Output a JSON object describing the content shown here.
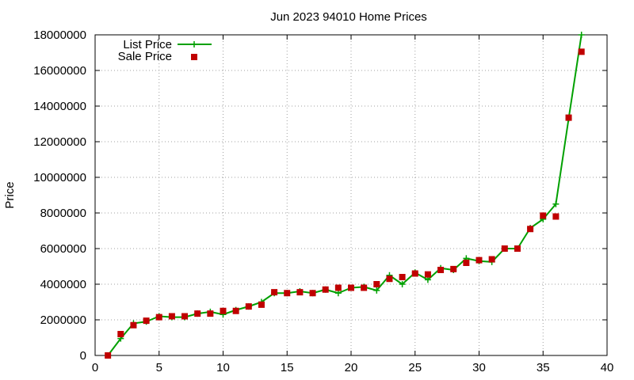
{
  "chart_data": {
    "type": "line",
    "title": "Jun 2023 94010 Home Prices",
    "xlabel": "",
    "ylabel": "Price",
    "xlim": [
      0,
      40
    ],
    "ylim": [
      0,
      18000000
    ],
    "x_ticks": [
      0,
      5,
      10,
      15,
      20,
      25,
      30,
      35,
      40
    ],
    "y_ticks": [
      0,
      2000000,
      4000000,
      6000000,
      8000000,
      10000000,
      12000000,
      14000000,
      16000000,
      18000000
    ],
    "grid": true,
    "legend_position": "top-left",
    "series": [
      {
        "name": "List Price",
        "style": "line+cross",
        "color": "#00a000",
        "points": [
          [
            1,
            0
          ],
          [
            2,
            950000
          ],
          [
            3,
            1800000
          ],
          [
            4,
            1900000
          ],
          [
            5,
            2200000
          ],
          [
            6,
            2150000
          ],
          [
            7,
            2150000
          ],
          [
            8,
            2350000
          ],
          [
            9,
            2450000
          ],
          [
            10,
            2300000
          ],
          [
            11,
            2550000
          ],
          [
            12,
            2750000
          ],
          [
            13,
            3000000
          ],
          [
            14,
            3500000
          ],
          [
            15,
            3500000
          ],
          [
            16,
            3600000
          ],
          [
            17,
            3500000
          ],
          [
            18,
            3700000
          ],
          [
            19,
            3500000
          ],
          [
            20,
            3800000
          ],
          [
            21,
            3850000
          ],
          [
            22,
            3650000
          ],
          [
            23,
            4500000
          ],
          [
            24,
            4000000
          ],
          [
            25,
            4650000
          ],
          [
            26,
            4250000
          ],
          [
            27,
            4900000
          ],
          [
            28,
            4800000
          ],
          [
            29,
            5450000
          ],
          [
            30,
            5300000
          ],
          [
            31,
            5250000
          ],
          [
            32,
            6000000
          ],
          [
            33,
            6000000
          ],
          [
            34,
            7150000
          ],
          [
            35,
            7650000
          ],
          [
            36,
            8500000
          ],
          [
            37,
            13300000
          ],
          [
            38,
            18000000
          ]
        ]
      },
      {
        "name": "Sale Price",
        "style": "square-marker",
        "color": "#c00000",
        "points": [
          [
            1,
            0
          ],
          [
            2,
            1200000
          ],
          [
            3,
            1700000
          ],
          [
            4,
            1950000
          ],
          [
            5,
            2150000
          ],
          [
            6,
            2200000
          ],
          [
            7,
            2200000
          ],
          [
            8,
            2350000
          ],
          [
            9,
            2350000
          ],
          [
            10,
            2500000
          ],
          [
            11,
            2500000
          ],
          [
            12,
            2750000
          ],
          [
            13,
            2850000
          ],
          [
            14,
            3550000
          ],
          [
            15,
            3500000
          ],
          [
            16,
            3550000
          ],
          [
            17,
            3500000
          ],
          [
            18,
            3700000
          ],
          [
            19,
            3800000
          ],
          [
            20,
            3800000
          ],
          [
            21,
            3800000
          ],
          [
            22,
            4000000
          ],
          [
            23,
            4300000
          ],
          [
            24,
            4400000
          ],
          [
            25,
            4600000
          ],
          [
            26,
            4550000
          ],
          [
            27,
            4800000
          ],
          [
            28,
            4850000
          ],
          [
            29,
            5200000
          ],
          [
            30,
            5350000
          ],
          [
            31,
            5400000
          ],
          [
            32,
            6000000
          ],
          [
            33,
            6000000
          ],
          [
            34,
            7100000
          ],
          [
            35,
            7850000
          ],
          [
            36,
            7800000
          ],
          [
            37,
            13350000
          ],
          [
            38,
            17050000
          ]
        ]
      }
    ]
  }
}
